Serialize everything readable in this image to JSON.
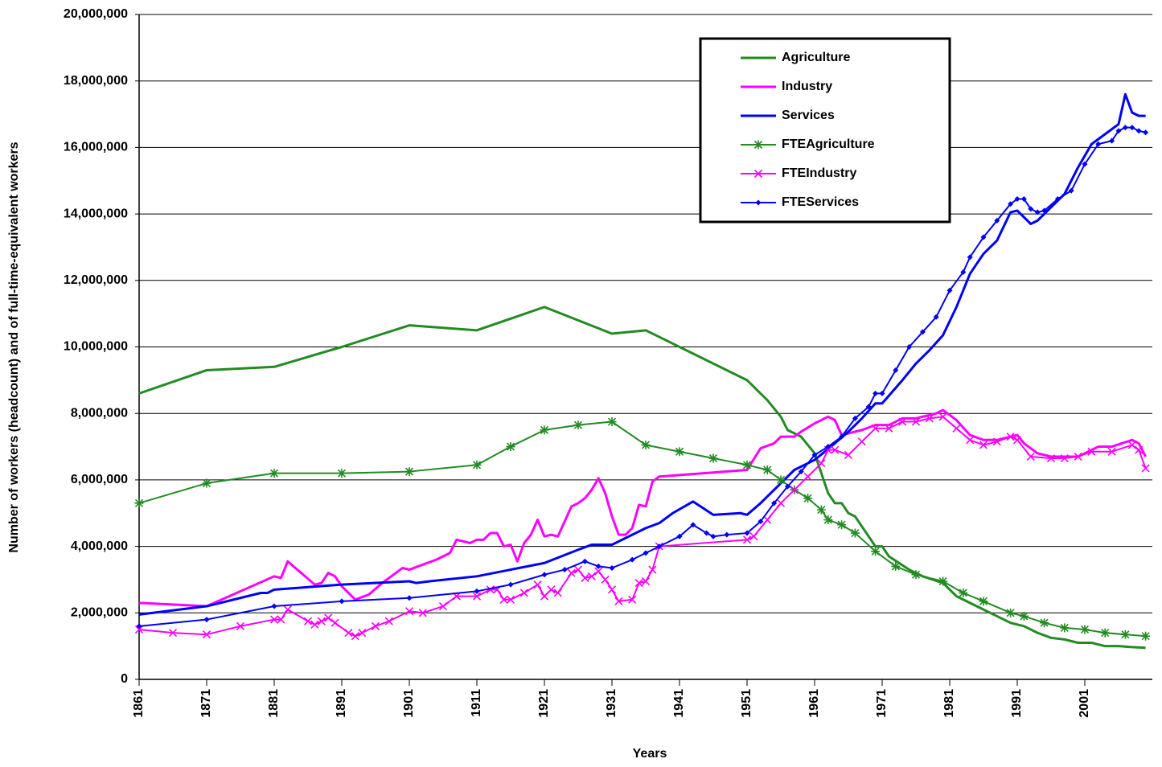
{
  "chart_data": {
    "type": "line",
    "xlabel": "Years",
    "ylabel": "Number of workers (headcount) and of full-time-equivalent workers",
    "xlim": [
      1861,
      2011
    ],
    "xticks": [
      1861,
      1871,
      1881,
      1891,
      1901,
      1911,
      1921,
      1931,
      1941,
      1951,
      1961,
      1971,
      1981,
      1991,
      2001
    ],
    "ylim": [
      0,
      20000000
    ],
    "yticks": [
      0,
      {
        "value": 2000000,
        "label": "2,000,000"
      },
      {
        "value": 4000000,
        "label": "4,000,000"
      },
      {
        "value": 6000000,
        "label": "6,000,000"
      },
      {
        "value": 8000000,
        "label": "8,000,000"
      },
      {
        "value": 10000000,
        "label": "10,000,000"
      },
      {
        "value": 12000000,
        "label": "12,000,000"
      },
      {
        "value": 14000000,
        "label": "14,000,000"
      },
      {
        "value": 16000000,
        "label": "16,000,000"
      },
      {
        "value": 18000000,
        "label": "18,000,000"
      },
      {
        "value": 20000000,
        "label": "20,000,000"
      }
    ],
    "grid": true,
    "legend": "upper right",
    "series": [
      {
        "name": "Agriculture",
        "color": "#228b22",
        "marker": "none",
        "x": [
          1861,
          1871,
          1881,
          1891,
          1901,
          1911,
          1921,
          1931,
          1936,
          1951,
          1953,
          1954,
          1956,
          1957,
          1959,
          1961,
          1962,
          1963,
          1964,
          1965,
          1966,
          1967,
          1968,
          1969,
          1970,
          1971,
          1972,
          1975,
          1977,
          1980,
          1982,
          1985,
          1988,
          1990,
          1992,
          1994,
          1996,
          1998,
          2000,
          2002,
          2004,
          2006,
          2008,
          2010
        ],
        "values": [
          8600000,
          9300000,
          9400000,
          10000000,
          10650000,
          10500000,
          11200000,
          10400000,
          10500000,
          9000000,
          8600000,
          8400000,
          7900000,
          7500000,
          7300000,
          6800000,
          6200000,
          5600000,
          5300000,
          5300000,
          5000000,
          4900000,
          4600000,
          4300000,
          4000000,
          4000000,
          3700000,
          3300000,
          3100000,
          2900000,
          2500000,
          2200000,
          1900000,
          1700000,
          1600000,
          1400000,
          1250000,
          1200000,
          1100000,
          1100000,
          1000000,
          1000000,
          970000,
          950000
        ]
      },
      {
        "name": "Industry",
        "color": "#ff00ff",
        "marker": "none",
        "x": [
          1861,
          1871,
          1881,
          1882,
          1883,
          1885,
          1887,
          1888,
          1889,
          1890,
          1891,
          1893,
          1895,
          1897,
          1899,
          1900,
          1901,
          1903,
          1905,
          1907,
          1908,
          1910,
          1911,
          1912,
          1913,
          1914,
          1915,
          1916,
          1917,
          1918,
          1919,
          1920,
          1921,
          1922,
          1923,
          1925,
          1926,
          1927,
          1928,
          1929,
          1930,
          1931,
          1932,
          1933,
          1934,
          1935,
          1936,
          1937,
          1938,
          1951,
          1953,
          1955,
          1956,
          1958,
          1959,
          1961,
          1963,
          1964,
          1965,
          1968,
          1970,
          1972,
          1974,
          1976,
          1979,
          1980,
          1982,
          1984,
          1986,
          1988,
          1991,
          1992,
          1994,
          1996,
          1998,
          2000,
          2003,
          2005,
          2008,
          2009,
          2010
        ],
        "values": [
          2300000,
          2200000,
          3100000,
          3050000,
          3550000,
          3200000,
          2850000,
          2900000,
          3200000,
          3100000,
          2800000,
          2400000,
          2550000,
          2900000,
          3200000,
          3350000,
          3300000,
          3450000,
          3600000,
          3800000,
          4200000,
          4100000,
          4200000,
          4200000,
          4400000,
          4400000,
          4000000,
          4050000,
          3550000,
          4100000,
          4350000,
          4800000,
          4300000,
          4350000,
          4300000,
          5200000,
          5300000,
          5450000,
          5700000,
          6050000,
          5600000,
          4900000,
          4350000,
          4350000,
          4550000,
          5250000,
          5200000,
          5950000,
          6100000,
          6300000,
          6950000,
          7100000,
          7300000,
          7300000,
          7450000,
          7700000,
          7900000,
          7800000,
          7350000,
          7500000,
          7650000,
          7650000,
          7850000,
          7850000,
          8000000,
          8100000,
          7800000,
          7350000,
          7200000,
          7200000,
          7350000,
          7100000,
          6800000,
          6700000,
          6700000,
          6700000,
          7000000,
          7000000,
          7200000,
          7100000,
          6700000
        ]
      },
      {
        "name": "Services",
        "color": "#0000ff",
        "marker": "none",
        "x": [
          1861,
          1871,
          1879,
          1880,
          1881,
          1891,
          1901,
          1902,
          1904,
          1911,
          1916,
          1921,
          1926,
          1928,
          1931,
          1936,
          1938,
          1940,
          1943,
          1946,
          1950,
          1951,
          1953,
          1956,
          1958,
          1961,
          1964,
          1966,
          1968,
          1970,
          1971,
          1974,
          1976,
          1978,
          1980,
          1982,
          1984,
          1986,
          1988,
          1990,
          1991,
          1993,
          1994,
          1996,
          1998,
          2000,
          2002,
          2004,
          2006,
          2007,
          2008,
          2009,
          2010
        ],
        "values": [
          1950000,
          2200000,
          2600000,
          2600000,
          2700000,
          2850000,
          2950000,
          2900000,
          2950000,
          3100000,
          3300000,
          3500000,
          3900000,
          4050000,
          4050000,
          4550000,
          4700000,
          5000000,
          5350000,
          4950000,
          5000000,
          4950000,
          5300000,
          5900000,
          6300000,
          6600000,
          7100000,
          7450000,
          7850000,
          8300000,
          8300000,
          9000000,
          9500000,
          9900000,
          10350000,
          11200000,
          12200000,
          12800000,
          13200000,
          14050000,
          14100000,
          13700000,
          13800000,
          14200000,
          14600000,
          15400000,
          16100000,
          16400000,
          16700000,
          17600000,
          17050000,
          16950000,
          16950000
        ]
      },
      {
        "name": "FTEAgriculture",
        "color": "#228b22",
        "marker": "star",
        "x": [
          1861,
          1871,
          1881,
          1891,
          1901,
          1911,
          1916,
          1921,
          1926,
          1931,
          1936,
          1941,
          1946,
          1951,
          1954,
          1956,
          1958,
          1960,
          1962,
          1963,
          1965,
          1967,
          1970,
          1973,
          1976,
          1980,
          1983,
          1986,
          1990,
          1992,
          1995,
          1998,
          2001,
          2004,
          2007,
          2010
        ],
        "values": [
          5300000,
          5900000,
          6200000,
          6200000,
          6250000,
          6450000,
          7000000,
          7500000,
          7650000,
          7750000,
          7050000,
          6850000,
          6650000,
          6450000,
          6300000,
          6000000,
          5700000,
          5450000,
          5100000,
          4800000,
          4650000,
          4400000,
          3850000,
          3400000,
          3150000,
          2950000,
          2600000,
          2350000,
          2000000,
          1900000,
          1700000,
          1550000,
          1500000,
          1400000,
          1350000,
          1300000
        ]
      },
      {
        "name": "FTEIndustry",
        "color": "#ff00ff",
        "marker": "x",
        "x": [
          1861,
          1866,
          1871,
          1876,
          1881,
          1882,
          1883,
          1886,
          1887,
          1888,
          1889,
          1890,
          1892,
          1893,
          1894,
          1896,
          1898,
          1901,
          1903,
          1906,
          1908,
          1911,
          1913,
          1914,
          1915,
          1916,
          1918,
          1920,
          1921,
          1922,
          1923,
          1925,
          1926,
          1927,
          1928,
          1929,
          1930,
          1931,
          1932,
          1934,
          1935,
          1936,
          1937,
          1938,
          1951,
          1952,
          1954,
          1956,
          1958,
          1960,
          1962,
          1963,
          1964,
          1966,
          1968,
          1970,
          1972,
          1974,
          1976,
          1978,
          1980,
          1982,
          1984,
          1986,
          1988,
          1990,
          1991,
          1993,
          1996,
          1998,
          2000,
          2002,
          2005,
          2008,
          2009,
          2010
        ],
        "values": [
          1500000,
          1400000,
          1350000,
          1600000,
          1800000,
          1800000,
          2100000,
          1750000,
          1650000,
          1750000,
          1850000,
          1700000,
          1400000,
          1300000,
          1400000,
          1600000,
          1750000,
          2050000,
          2000000,
          2200000,
          2500000,
          2500000,
          2700000,
          2700000,
          2400000,
          2400000,
          2600000,
          2850000,
          2500000,
          2700000,
          2600000,
          3200000,
          3300000,
          3050000,
          3100000,
          3250000,
          3000000,
          2700000,
          2350000,
          2400000,
          2900000,
          2950000,
          3300000,
          4000000,
          4200000,
          4300000,
          4800000,
          5300000,
          5700000,
          6100000,
          6500000,
          6900000,
          6900000,
          6750000,
          7150000,
          7550000,
          7550000,
          7750000,
          7750000,
          7850000,
          7900000,
          7550000,
          7200000,
          7050000,
          7150000,
          7300000,
          7200000,
          6700000,
          6650000,
          6650000,
          6700000,
          6850000,
          6850000,
          7050000,
          6900000,
          6350000
        ]
      },
      {
        "name": "FTEServices",
        "color": "#0000ff",
        "marker": "diamond",
        "x": [
          1861,
          1871,
          1881,
          1891,
          1901,
          1911,
          1916,
          1921,
          1924,
          1927,
          1929,
          1931,
          1934,
          1936,
          1938,
          1941,
          1943,
          1945,
          1946,
          1948,
          1951,
          1953,
          1955,
          1957,
          1959,
          1961,
          1963,
          1965,
          1967,
          1969,
          1970,
          1971,
          1973,
          1975,
          1977,
          1979,
          1981,
          1983,
          1984,
          1986,
          1988,
          1990,
          1991,
          1992,
          1993,
          1994,
          1995,
          1997,
          1999,
          2001,
          2003,
          2005,
          2006,
          2007,
          2008,
          2009,
          2010
        ],
        "values": [
          1600000,
          1800000,
          2200000,
          2350000,
          2450000,
          2650000,
          2850000,
          3150000,
          3300000,
          3550000,
          3400000,
          3350000,
          3600000,
          3800000,
          4000000,
          4300000,
          4650000,
          4400000,
          4300000,
          4350000,
          4400000,
          4750000,
          5300000,
          5800000,
          6250000,
          6750000,
          7000000,
          7300000,
          7850000,
          8200000,
          8600000,
          8600000,
          9300000,
          10000000,
          10450000,
          10900000,
          11700000,
          12250000,
          12700000,
          13300000,
          13800000,
          14300000,
          14450000,
          14450000,
          14150000,
          14050000,
          14100000,
          14450000,
          14700000,
          15500000,
          16100000,
          16200000,
          16500000,
          16600000,
          16600000,
          16500000,
          16450000
        ]
      }
    ]
  }
}
